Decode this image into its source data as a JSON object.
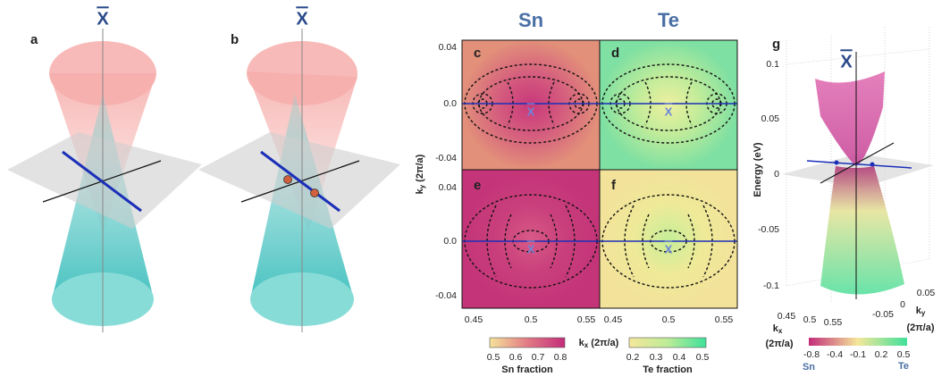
{
  "panels": {
    "a": {
      "label": "a",
      "point": "X"
    },
    "b": {
      "label": "b",
      "point": "X"
    },
    "maps": {
      "column_headers": [
        "Sn",
        "Te"
      ],
      "panel_labels": [
        "c",
        "d",
        "e",
        "f"
      ],
      "point_labels": [
        "X",
        "X",
        "X",
        "X"
      ],
      "y_axis": {
        "symbol": "k",
        "subscript": "y",
        "unit": " (2π/a)"
      },
      "y_ticks_top": [
        "0.04",
        "0.0",
        "-0.04"
      ],
      "y_ticks_bottom": [
        "0.04",
        "0.0",
        "-0.04"
      ],
      "x_axis": {
        "symbol": "k",
        "subscript": "x",
        "unit": " (2π/a)"
      },
      "x_ticks_left": [
        "0.45",
        "0.5",
        "0.55"
      ],
      "x_ticks_right": [
        "0.45",
        "0.5",
        "0.55"
      ],
      "sn_colorbar": {
        "ticks": [
          "0.5",
          "0.6",
          "0.7",
          "0.8"
        ],
        "title": "Sn fraction"
      },
      "te_colorbar": {
        "ticks": [
          "0.2",
          "0.3",
          "0.4",
          "0.5"
        ],
        "title": "Te fraction"
      }
    },
    "g": {
      "label": "g",
      "point": "X",
      "z_axis": "Energy (eV)",
      "z_ticks": [
        "0.1",
        "0.05",
        "0",
        "-0.05",
        "-0.1"
      ],
      "kx_axis": {
        "symbol": "k",
        "subscript": "x",
        "unit": "(2π/a)"
      },
      "kx_ticks": [
        "0.45",
        "0.5",
        "0.55"
      ],
      "ky_axis": {
        "symbol": "k",
        "subscript": "y",
        "unit": "(2π/a)"
      },
      "ky_ticks": [
        "0.05",
        "0",
        "-0.05"
      ],
      "colorbar_ticks": [
        "-0.8",
        "-0.4",
        "-0.1",
        "0.2",
        "0.5"
      ],
      "colorbar_ends": [
        "Sn",
        "Te"
      ]
    }
  }
}
